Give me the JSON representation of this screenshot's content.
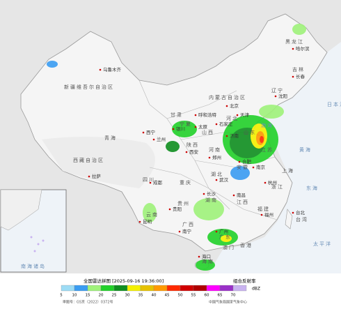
{
  "map": {
    "places": [
      "乌鲁木齐",
      "新疆维吾尔自治区",
      "西藏自治区",
      "青海",
      "拉萨",
      "西宁",
      "内蒙古自治区",
      "甘肃",
      "宁夏",
      "银川",
      "兰州",
      "陕西",
      "西安",
      "四川",
      "成都",
      "重庆",
      "贵州",
      "贵阳",
      "云南",
      "昆明",
      "广西",
      "南宁",
      "广东",
      "广州",
      "海南",
      "海口",
      "湖南",
      "长沙",
      "湖北",
      "武汉",
      "江西",
      "南昌",
      "福建",
      "福州",
      "浙江",
      "杭州",
      "上海",
      "江苏",
      "南京",
      "安徽",
      "合肥",
      "山东",
      "济南",
      "河南",
      "郑州",
      "河北",
      "石家庄",
      "北京",
      "天津",
      "山西",
      "太原",
      "辽宁",
      "沈阳",
      "吉林",
      "长春",
      "黑龙江",
      "哈尔滨",
      "台湾",
      "台北",
      "香港",
      "澳门",
      "呼和浩特"
    ],
    "seas": [
      "渤海",
      "黄海",
      "东海",
      "日本海",
      "太平洋",
      "南海诸岛"
    ],
    "legend": {
      "title": "全国雷达拼图 [2025-09-16 19:36:00]",
      "product": "组合反射率",
      "unit": "dBZ",
      "levels": [
        5,
        10,
        15,
        20,
        25,
        30,
        35,
        40,
        45,
        50,
        55,
        60,
        65,
        70
      ],
      "colors": [
        "#9ddcf5",
        "#3a9cf2",
        "#9ff27a",
        "#22d12a",
        "#0f8f20",
        "#f4f000",
        "#e6c200",
        "#ff9a00",
        "#ff2a00",
        "#d10000",
        "#b00000",
        "#ff00ff",
        "#9a30c8",
        "#c9b3f0"
      ],
      "approval": "审图号：GS京（2022）0372号",
      "source": "中国气象局国家气象中心"
    }
  }
}
